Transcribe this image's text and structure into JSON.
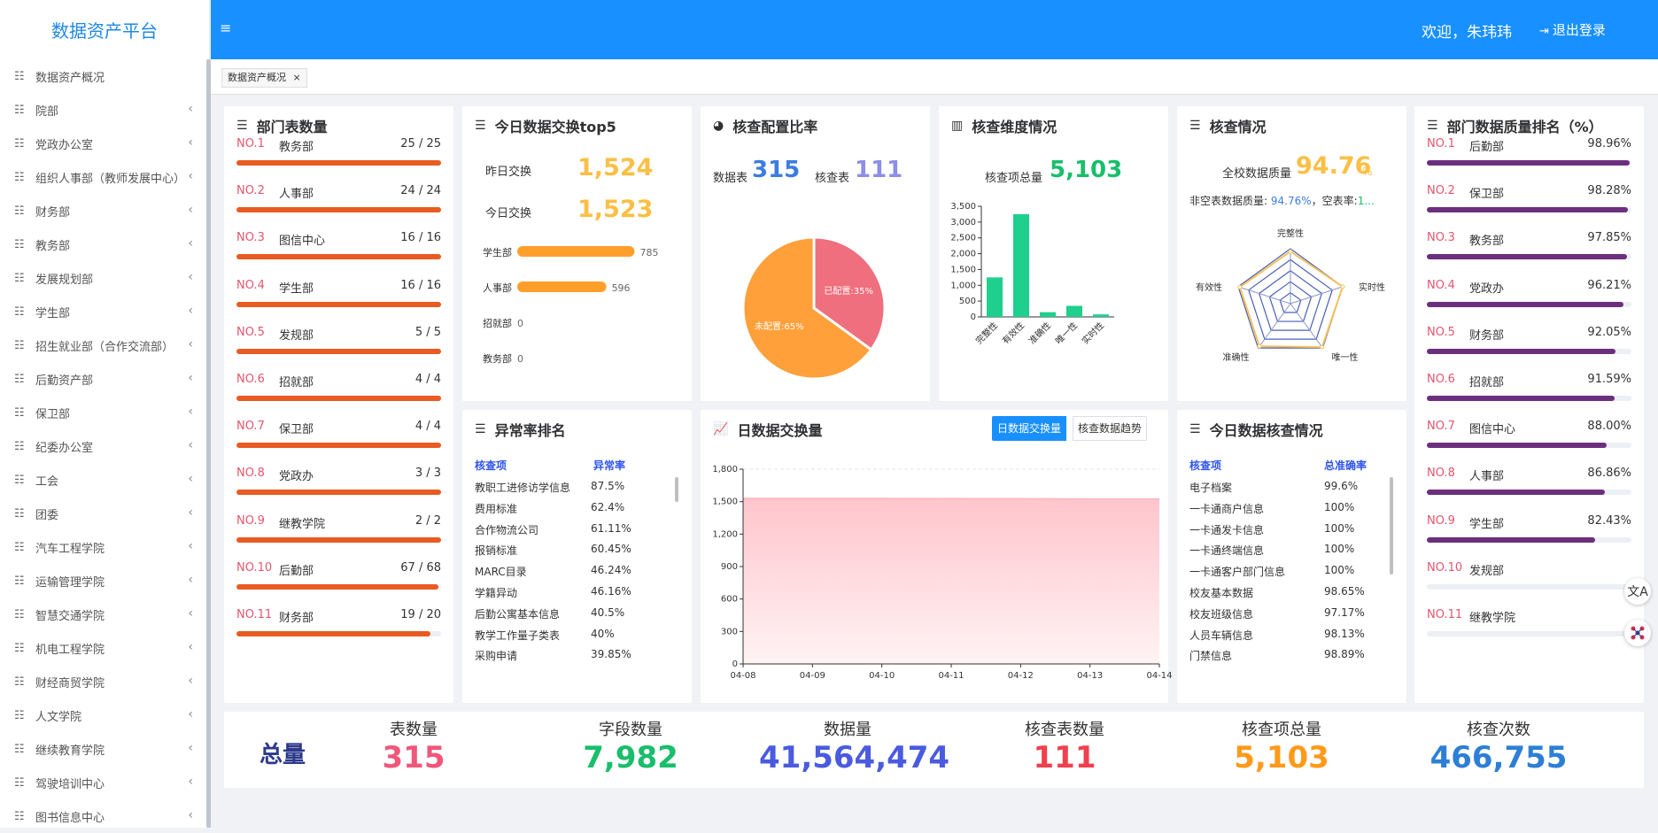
{
  "app": {
    "title": "数据资产平台",
    "menu_icon": "≡",
    "welcome": "欢迎，朱玮玮",
    "logout": "退出登录"
  },
  "sidebar": {
    "items": [
      {
        "label": "数据资产概况",
        "expandable": false
      },
      {
        "label": "院部",
        "expandable": true
      },
      {
        "label": "党政办公室",
        "expandable": true
      },
      {
        "label": "组织人事部（教师发展中心）",
        "expandable": true
      },
      {
        "label": "财务部",
        "expandable": true
      },
      {
        "label": "教务部",
        "expandable": true
      },
      {
        "label": "发展规划部",
        "expandable": true
      },
      {
        "label": "学生部",
        "expandable": true
      },
      {
        "label": "招生就业部（合作交流部）",
        "expandable": true
      },
      {
        "label": "后勤资产部",
        "expandable": true
      },
      {
        "label": "保卫部",
        "expandable": true
      },
      {
        "label": "纪委办公室",
        "expandable": true
      },
      {
        "label": "工会",
        "expandable": true
      },
      {
        "label": "团委",
        "expandable": true
      },
      {
        "label": "汽车工程学院",
        "expandable": true
      },
      {
        "label": "运输管理学院",
        "expandable": true
      },
      {
        "label": "智慧交通学院",
        "expandable": true
      },
      {
        "label": "机电工程学院",
        "expandable": true
      },
      {
        "label": "财经商贸学院",
        "expandable": true
      },
      {
        "label": "人文学院",
        "expandable": true
      },
      {
        "label": "继续教育学院",
        "expandable": true
      },
      {
        "label": "驾驶培训中心",
        "expandable": true
      },
      {
        "label": "图书信息中心",
        "expandable": true
      }
    ]
  },
  "tabs": [
    {
      "label": "数据资产概况",
      "close": "×"
    }
  ],
  "dept_tables": {
    "title": "部门表数量",
    "rows": [
      {
        "no": "NO.1",
        "name": "教务部",
        "count": "25 / 25",
        "ratio": 1.0
      },
      {
        "no": "NO.2",
        "name": "人事部",
        "count": "24 / 24",
        "ratio": 1.0
      },
      {
        "no": "NO.3",
        "name": "图信中心",
        "count": "16 / 16",
        "ratio": 1.0
      },
      {
        "no": "NO.4",
        "name": "学生部",
        "count": "16 / 16",
        "ratio": 1.0
      },
      {
        "no": "NO.5",
        "name": "发规部",
        "count": "5 / 5",
        "ratio": 1.0
      },
      {
        "no": "NO.6",
        "name": "招就部",
        "count": "4 / 4",
        "ratio": 1.0
      },
      {
        "no": "NO.7",
        "name": "保卫部",
        "count": "4 / 4",
        "ratio": 1.0
      },
      {
        "no": "NO.8",
        "name": "党政办",
        "count": "3 / 3",
        "ratio": 1.0
      },
      {
        "no": "NO.9",
        "name": "继教学院",
        "count": "2 / 2",
        "ratio": 1.0
      },
      {
        "no": "NO.10",
        "name": "后勤部",
        "count": "67 / 68",
        "ratio": 0.985
      },
      {
        "no": "NO.11",
        "name": "财务部",
        "count": "19 / 20",
        "ratio": 0.95
      }
    ]
  },
  "exchange_top5": {
    "title": "今日数据交换top5",
    "yesterday_label": "昨日交换",
    "yesterday_value": "1,524",
    "today_label": "今日交换",
    "today_value": "1,523",
    "bars": [
      {
        "name": "学生部",
        "value": 785
      },
      {
        "name": "人事部",
        "value": 596
      },
      {
        "name": "招就部",
        "value": 0
      },
      {
        "name": "教务部",
        "value": 0
      }
    ]
  },
  "config_ratio": {
    "title": "核查配置比率",
    "data_label": "数据表",
    "data_value": "315",
    "check_label": "核查表",
    "check_value": "111",
    "chart_data": {
      "type": "pie",
      "slices": [
        {
          "label": "已配置:35%",
          "value": 35,
          "color": "#ef6f7e"
        },
        {
          "label": "未配置:65%",
          "value": 65,
          "color": "#ffa03a"
        }
      ]
    }
  },
  "dimension": {
    "title": "核查维度情况",
    "total_label": "核查项总量",
    "total_value": "5,103",
    "chart_data": {
      "type": "bar",
      "categories": [
        "完整性",
        "有效性",
        "准确性",
        "唯一性",
        "实时性"
      ],
      "values": [
        1250,
        3250,
        150,
        350,
        80
      ],
      "ylim": [
        0,
        3500
      ],
      "yticks": [
        "0",
        "500",
        "1,000",
        "1,500",
        "2,000",
        "2,500",
        "3,000",
        "3,500"
      ],
      "color": "#1fcf8e"
    }
  },
  "check_quality": {
    "title": "核查情况",
    "quality_label": "全校数据质量",
    "quality_value": "94.76",
    "quality_unit": "%",
    "sub_prefix": "非空表数据质量:",
    "sub_value": "94.76%",
    "sub_mid": "，空表率:",
    "sub_value2": "1...",
    "chart_data": {
      "type": "radar",
      "axes": [
        "完整性",
        "实时性",
        "唯一性",
        "准确性",
        "有效性"
      ],
      "values": [
        0.95,
        1.0,
        0.98,
        0.96,
        0.97
      ]
    }
  },
  "quality_rank": {
    "title": "部门数据质量排名（%）",
    "rows": [
      {
        "no": "NO.1",
        "name": "后勤部",
        "value": "98.96%",
        "ratio": 0.9896
      },
      {
        "no": "NO.2",
        "name": "保卫部",
        "value": "98.28%",
        "ratio": 0.9828
      },
      {
        "no": "NO.3",
        "name": "教务部",
        "value": "97.85%",
        "ratio": 0.9785
      },
      {
        "no": "NO.4",
        "name": "党政办",
        "value": "96.21%",
        "ratio": 0.9621
      },
      {
        "no": "NO.5",
        "name": "财务部",
        "value": "92.05%",
        "ratio": 0.9205
      },
      {
        "no": "NO.6",
        "name": "招就部",
        "value": "91.59%",
        "ratio": 0.9159
      },
      {
        "no": "NO.7",
        "name": "图信中心",
        "value": "88.00%",
        "ratio": 0.88
      },
      {
        "no": "NO.8",
        "name": "人事部",
        "value": "86.86%",
        "ratio": 0.8686
      },
      {
        "no": "NO.9",
        "name": "学生部",
        "value": "82.43%",
        "ratio": 0.8243
      },
      {
        "no": "NO.10",
        "name": "发规部",
        "value": "",
        "ratio": 0
      },
      {
        "no": "NO.11",
        "name": "继教学院",
        "value": "",
        "ratio": 0
      }
    ]
  },
  "anomaly": {
    "title": "异常率排名",
    "headers": [
      "核查项",
      "异常率"
    ],
    "rows": [
      [
        "教职工进修访学信息",
        "87.5%"
      ],
      [
        "费用标准",
        "62.4%"
      ],
      [
        "合作物流公司",
        "61.11%"
      ],
      [
        "报销标准",
        "60.45%"
      ],
      [
        "MARC目录",
        "46.24%"
      ],
      [
        "学籍异动",
        "46.16%"
      ],
      [
        "后勤公寓基本信息",
        "40.5%"
      ],
      [
        "教学工作量子类表",
        "40%"
      ],
      [
        "采购申请",
        "39.85%"
      ]
    ]
  },
  "daily_exchange": {
    "title": "日数据交换量",
    "tab_active": "日数据交换量",
    "tab_other": "核查数据趋势",
    "chart_data": {
      "type": "area",
      "x": [
        "04-08",
        "04-09",
        "04-10",
        "04-11",
        "04-12",
        "04-13",
        "04-14"
      ],
      "values": [
        1530,
        1530,
        1530,
        1528,
        1527,
        1525,
        1524
      ],
      "ylim": [
        0,
        1800
      ],
      "yticks": [
        "0",
        "300",
        "600",
        "900",
        "1,200",
        "1,500",
        "1,800"
      ],
      "color": "#ffb6bf"
    }
  },
  "today_check": {
    "title": "今日数据核查情况",
    "headers": [
      "核查项",
      "总准确率"
    ],
    "rows": [
      [
        "电子档案",
        "99.6%"
      ],
      [
        "一卡通商户信息",
        "100%"
      ],
      [
        "一卡通发卡信息",
        "100%"
      ],
      [
        "一卡通终端信息",
        "100%"
      ],
      [
        "一卡通客户部门信息",
        "100%"
      ],
      [
        "校友基本数据",
        "98.65%"
      ],
      [
        "校友班级信息",
        "97.17%"
      ],
      [
        "人员车辆信息",
        "98.13%"
      ],
      [
        "门禁信息",
        "98.89%"
      ]
    ]
  },
  "totals": {
    "title": "总量",
    "stats": [
      {
        "label": "表数量",
        "value": "315",
        "color": "#f0577a"
      },
      {
        "label": "字段数量",
        "value": "7,982",
        "color": "#19be6b"
      },
      {
        "label": "数据量",
        "value": "41,564,474",
        "color": "#4a5be0"
      },
      {
        "label": "核查表数量",
        "value": "111",
        "color": "#f0404e"
      },
      {
        "label": "核查项总量",
        "value": "5,103",
        "color": "#ff9a1a"
      },
      {
        "label": "核查次数",
        "value": "466,755",
        "color": "#2d7fd6"
      }
    ]
  },
  "colors": {
    "primary": "#1890ff",
    "dept_bar": "#e85b22",
    "quality_bar": "#6b2f7d",
    "top5_bar": "#ff9f2a",
    "blue_num": "#4a7be8",
    "green_num": "#19be6b",
    "orange_num": "#fbbf45"
  },
  "float_icons": [
    "translate-icon",
    "ai-assistant-icon"
  ]
}
